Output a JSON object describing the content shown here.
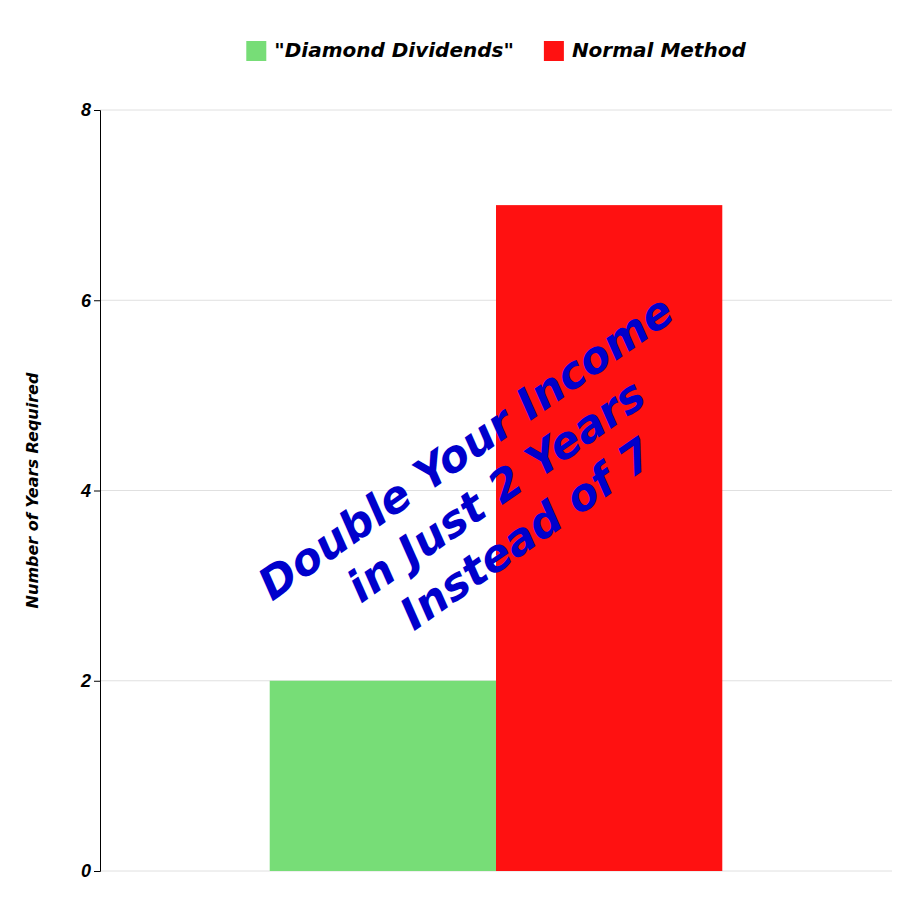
{
  "chart_data": {
    "type": "bar",
    "categories": [
      "\"Diamond Dividends\"",
      "Normal Method"
    ],
    "values": [
      2,
      7
    ],
    "colors": [
      "#77dd77",
      "#ff1111"
    ],
    "ylabel": "Number of Years Required",
    "ylim": [
      0,
      8
    ],
    "yticks": [
      0,
      2,
      4,
      6,
      8
    ],
    "grid": true,
    "legend": "top",
    "tick_labels": "y",
    "annotations": [
      {
        "text": "Double Your Income\nin Just 2 Years\nInstead of 7",
        "color": "#0000cc"
      }
    ]
  }
}
